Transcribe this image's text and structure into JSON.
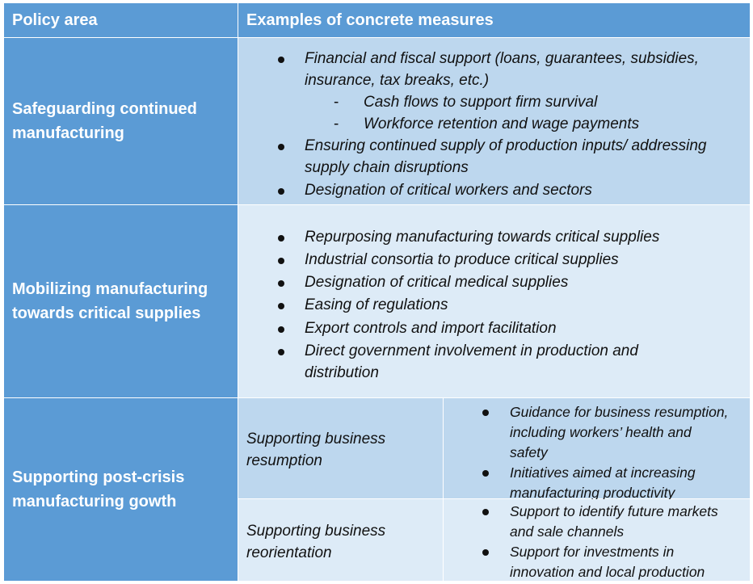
{
  "header": {
    "col1": "Policy area",
    "col2": "Examples of concrete measures"
  },
  "rows": [
    {
      "area_line1": "Safeguarding continued",
      "area_line2": "manufacturing",
      "bullets": [
        {
          "l1": "Financial and fiscal support (loans, guarantees, subsidies,",
          "l2": "insurance, tax breaks, etc.)"
        },
        {
          "l1": "Ensuring continued supply of production inputs/ addressing",
          "l2": "supply chain disruptions"
        },
        {
          "l1": "Designation of critical workers and sectors"
        }
      ],
      "subitems": [
        "Cash flows to support firm survival",
        "Workforce retention and wage payments"
      ]
    },
    {
      "area_line1": "Mobilizing manufacturing",
      "area_line2": "towards critical supplies",
      "bullets": [
        {
          "l1": "Repurposing manufacturing towards critical supplies"
        },
        {
          "l1": "Industrial consortia to produce critical supplies"
        },
        {
          "l1": "Designation of critical medical supplies"
        },
        {
          "l1": "Easing of regulations"
        },
        {
          "l1": "Export controls and import facilitation"
        },
        {
          "l1": "Direct government involvement in production and",
          "l2": "distribution"
        }
      ]
    },
    {
      "area_line1": "Supporting post-crisis",
      "area_line2": "manufacturing gowth",
      "sub": [
        {
          "label_l1": "Supporting business",
          "label_l2": "resumption",
          "bullets": [
            {
              "l1": "Guidance for business resumption,",
              "l2": "including workers’ health and",
              "l3": "safety"
            },
            {
              "l1": "Initiatives aimed at increasing",
              "l2": "manufacturing productivity"
            }
          ]
        },
        {
          "label_l1": "Supporting business",
          "label_l2": "reorientation",
          "bullets": [
            {
              "l1": "Support to identify future markets",
              "l2": "and sale channels"
            },
            {
              "l1": "Support for investments in",
              "l2": "innovation and local production"
            }
          ]
        }
      ]
    }
  ]
}
